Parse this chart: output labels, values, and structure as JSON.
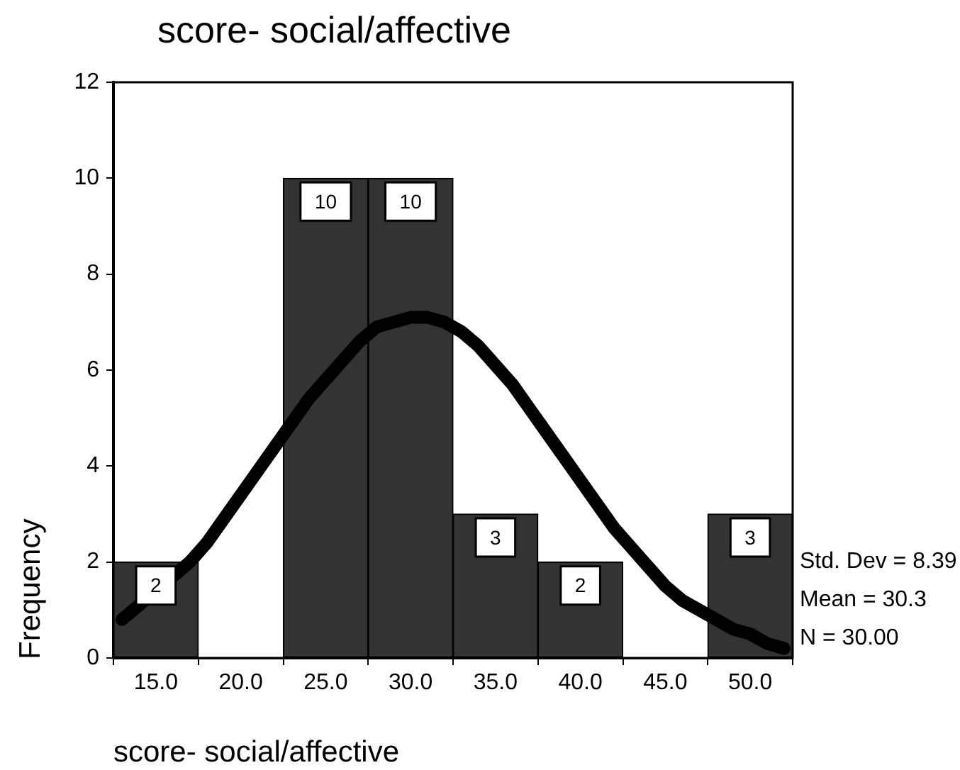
{
  "chart_data": {
    "type": "histogram",
    "title": "score- social/affective",
    "xlabel": "score- social/affective",
    "ylabel": "Frequency",
    "bins": [
      12.5,
      17.5,
      22.5,
      27.5,
      32.5,
      37.5,
      42.5,
      47.5,
      52.5
    ],
    "series": [
      {
        "color": "#333333",
        "values": [
          2,
          0,
          10,
          10,
          3,
          2,
          0,
          3
        ],
        "value_labels": [
          "2",
          null,
          "10",
          "10",
          "3",
          "2",
          null,
          "3"
        ]
      },
      {
        "type": "line",
        "color": "#000000",
        "x": [
          13,
          14,
          15,
          16,
          17,
          18,
          19,
          20,
          21,
          22,
          23,
          24,
          25,
          26,
          27,
          28,
          29,
          30,
          31,
          32,
          33,
          34,
          35,
          36,
          37,
          38,
          39,
          40,
          41,
          42,
          43,
          44,
          45,
          46,
          47,
          48,
          49,
          50,
          51,
          52
        ],
        "values": [
          0.8,
          1.1,
          null,
          null,
          2.0,
          2.4,
          2.9,
          3.4,
          3.9,
          4.4,
          4.9,
          5.4,
          5.8,
          6.2,
          6.6,
          6.9,
          7.0,
          7.1,
          7.1,
          7.0,
          6.8,
          6.5,
          6.1,
          5.7,
          5.2,
          4.7,
          4.2,
          3.7,
          3.2,
          2.7,
          2.3,
          1.9,
          1.5,
          1.2,
          1.0,
          0.8,
          0.6,
          0.5,
          0.3,
          0.2
        ]
      }
    ],
    "xlim": [
      12.5,
      52.5
    ],
    "xticks": [
      {
        "value": 15,
        "label": "15.0"
      },
      {
        "value": 20,
        "label": "20.0"
      },
      {
        "value": 25,
        "label": "25.0"
      },
      {
        "value": 30,
        "label": "30.0"
      },
      {
        "value": 35,
        "label": "35.0"
      },
      {
        "value": 40,
        "label": "40.0"
      },
      {
        "value": 45,
        "label": "45.0"
      },
      {
        "value": 50,
        "label": "50.0"
      }
    ],
    "ylim": [
      0,
      12
    ],
    "yticks": [
      0,
      2,
      4,
      6,
      8,
      10,
      12
    ],
    "annotations": [
      "Std. Dev = 8.39",
      "Mean = 30.3",
      "N = 30.00"
    ]
  }
}
